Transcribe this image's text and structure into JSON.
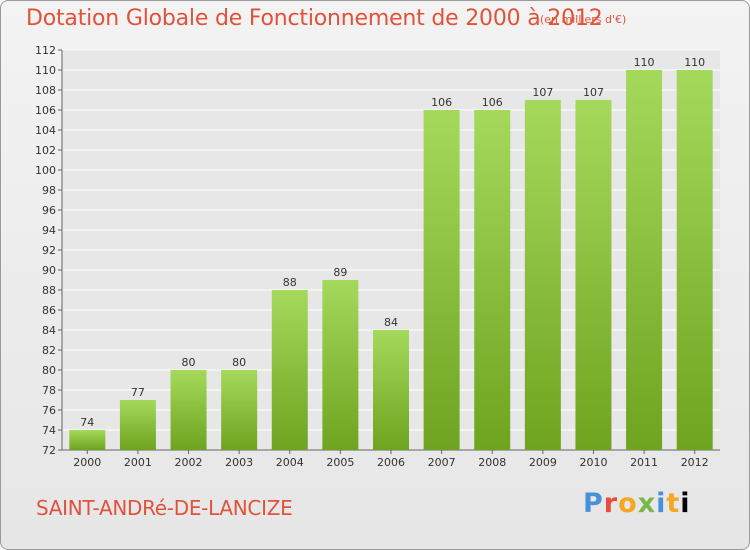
{
  "header": {
    "title": "Dotation Globale de Fonctionnement de 2000 à 2012",
    "unit": "(en milliers d'€)"
  },
  "footer": {
    "commune": "SAINT-ANDRé-DE-LANCIZE",
    "logo_letters": [
      "P",
      "r",
      "o",
      "x",
      "i",
      "t",
      "i"
    ]
  },
  "colors": {
    "bar_top": "#a5d95c",
    "bar_bottom": "#6ea41f",
    "title": "#e0533a",
    "grid": "#ffffff"
  },
  "chart_data": {
    "type": "bar",
    "categories": [
      "2000",
      "2001",
      "2002",
      "2003",
      "2004",
      "2005",
      "2006",
      "2007",
      "2008",
      "2009",
      "2010",
      "2011",
      "2012"
    ],
    "values": [
      74,
      77,
      80,
      80,
      88,
      89,
      84,
      106,
      106,
      107,
      107,
      110,
      110
    ],
    "ylim": [
      72,
      112
    ],
    "yticks": [
      72,
      74,
      76,
      78,
      80,
      82,
      84,
      86,
      88,
      90,
      92,
      94,
      96,
      98,
      100,
      102,
      104,
      106,
      108,
      110,
      112
    ],
    "grid": true,
    "title": "Dotation Globale de Fonctionnement de 2000 à 2012",
    "xlabel": "",
    "ylabel": ""
  }
}
